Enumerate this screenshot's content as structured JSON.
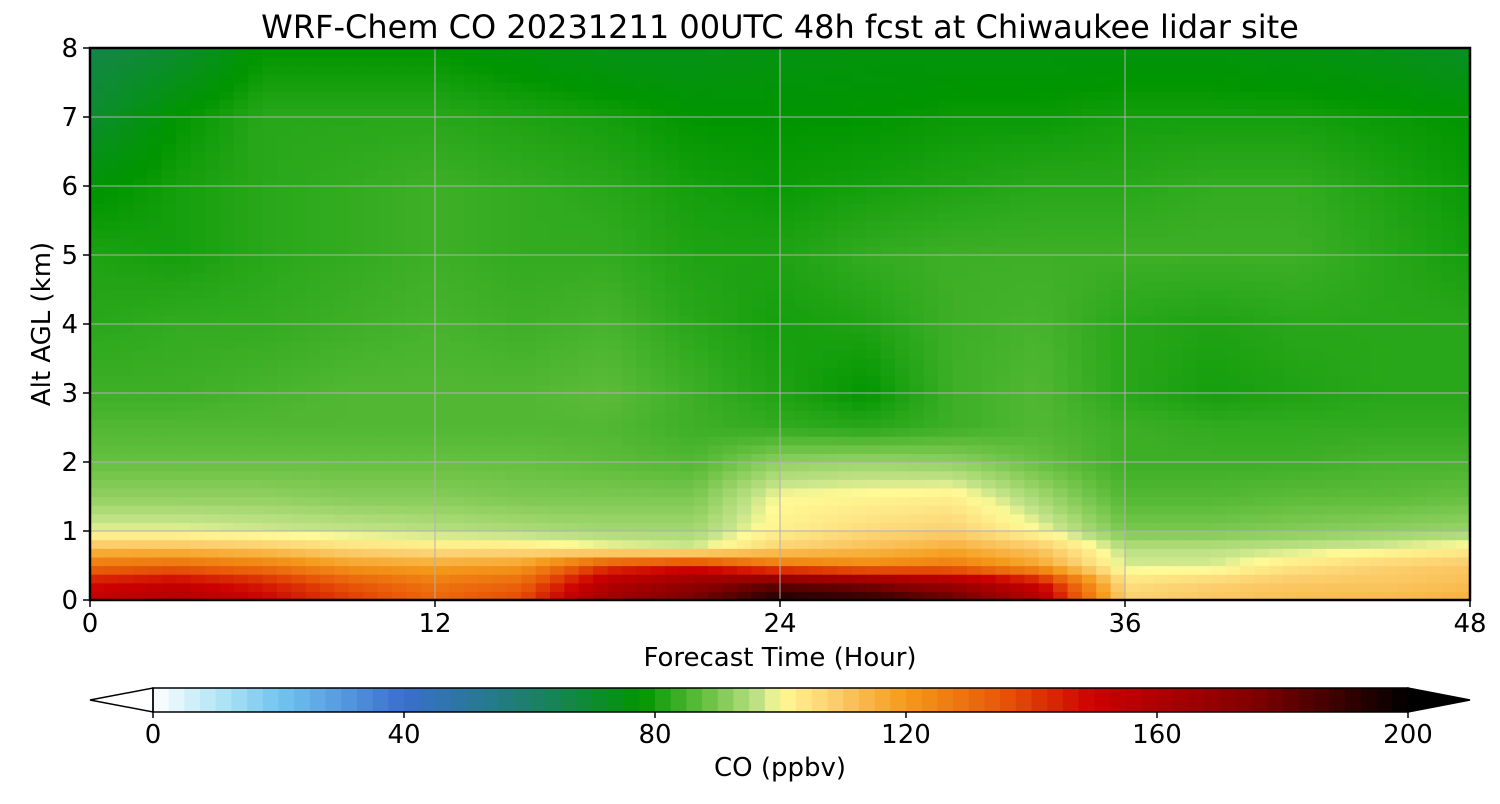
{
  "chart_data": {
    "type": "heatmap",
    "title": "WRF-Chem CO  20231211 00UTC 48h fcst at Chiwaukee lidar site",
    "xlabel": "Forecast Time (Hour)",
    "ylabel": "Alt AGL (km)",
    "xlim": [
      0,
      48
    ],
    "ylim": [
      0,
      8
    ],
    "xticks": [
      0,
      12,
      24,
      36,
      48
    ],
    "yticks": [
      0,
      1,
      2,
      3,
      4,
      5,
      6,
      7,
      8
    ],
    "grid": true,
    "x": [
      0,
      3,
      6,
      9,
      12,
      15,
      18,
      21,
      24,
      27,
      30,
      33,
      36,
      39,
      42,
      45,
      48
    ],
    "y": [
      0,
      0.25,
      0.5,
      0.75,
      1,
      1.5,
      2,
      2.5,
      3,
      4,
      5,
      6,
      7,
      8
    ],
    "z": [
      [
        152,
        158,
        150,
        140,
        132,
        138,
        165,
        178,
        195,
        192,
        182,
        158,
        108,
        110,
        112,
        113,
        115
      ],
      [
        148,
        152,
        145,
        135,
        128,
        132,
        158,
        170,
        180,
        175,
        165,
        150,
        105,
        108,
        110,
        110,
        112
      ],
      [
        130,
        132,
        128,
        120,
        118,
        120,
        140,
        145,
        130,
        125,
        128,
        118,
        98,
        98,
        104,
        108,
        110
      ],
      [
        112,
        112,
        110,
        106,
        104,
        104,
        100,
        98,
        108,
        112,
        116,
        110,
        96,
        96,
        97,
        99,
        102
      ],
      [
        99,
        99,
        98,
        97,
        96,
        95,
        94,
        94,
        102,
        106,
        108,
        100,
        90,
        90,
        91,
        92,
        93
      ],
      [
        92,
        92,
        92,
        91,
        91,
        90,
        90,
        90,
        100,
        101,
        102,
        94,
        86,
        86,
        87,
        87,
        88
      ],
      [
        88,
        88,
        88,
        88,
        88,
        88,
        87,
        86,
        92,
        93,
        92,
        88,
        84,
        84,
        84,
        85,
        85
      ],
      [
        86,
        86,
        86,
        86,
        86,
        86,
        86,
        84,
        83,
        82,
        84,
        86,
        84,
        83,
        83,
        83,
        83
      ],
      [
        84,
        84,
        85,
        86,
        86,
        86,
        87,
        84,
        81,
        78,
        84,
        86,
        82,
        80,
        81,
        82,
        82
      ],
      [
        82,
        83,
        83,
        84,
        85,
        84,
        85,
        82,
        80,
        81,
        84,
        85,
        82,
        81,
        82,
        82,
        82
      ],
      [
        81,
        80,
        82,
        83,
        84,
        83,
        83,
        81,
        81,
        83,
        84,
        84,
        84,
        84,
        84,
        82,
        80
      ],
      [
        77,
        80,
        82,
        83,
        84,
        83,
        82,
        80,
        79,
        80,
        81,
        82,
        82,
        83,
        83,
        81,
        79
      ],
      [
        70,
        78,
        82,
        82,
        82,
        81,
        80,
        78,
        78,
        78,
        79,
        79,
        80,
        80,
        80,
        79,
        78
      ],
      [
        66,
        70,
        78,
        78,
        78,
        76,
        74,
        74,
        75,
        76,
        76,
        76,
        76,
        76,
        75,
        74,
        72
      ]
    ],
    "colorbar": {
      "label": "CO  (ppbv)",
      "min": 0,
      "max": 200,
      "ticks": [
        0,
        40,
        80,
        120,
        160,
        200
      ],
      "extend": "both",
      "colormap": [
        [
          0,
          "#ffffff"
        ],
        [
          10,
          "#b6e6f6"
        ],
        [
          20,
          "#72c5ef"
        ],
        [
          40,
          "#3a6fcf"
        ],
        [
          60,
          "#1c7f6c"
        ],
        [
          78,
          "#009600"
        ],
        [
          88,
          "#66c040"
        ],
        [
          97,
          "#c5e48a"
        ],
        [
          100,
          "#fffa96"
        ],
        [
          108,
          "#fcd070"
        ],
        [
          120,
          "#f59a1a"
        ],
        [
          135,
          "#e85808"
        ],
        [
          150,
          "#cc0000"
        ],
        [
          175,
          "#820000"
        ],
        [
          200,
          "#000000"
        ]
      ]
    }
  }
}
